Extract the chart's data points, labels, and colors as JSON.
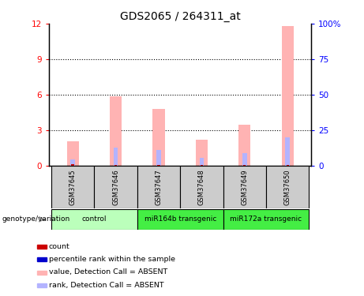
{
  "title": "GDS2065 / 264311_at",
  "samples": [
    "GSM37645",
    "GSM37646",
    "GSM37647",
    "GSM37648",
    "GSM37649",
    "GSM37650"
  ],
  "value_bars": [
    2.1,
    5.85,
    4.8,
    2.2,
    3.5,
    11.8
  ],
  "rank_bars": [
    0.55,
    1.55,
    1.35,
    0.65,
    1.1,
    2.4
  ],
  "count_marks": [
    0.12,
    0.1,
    0.1,
    0.09,
    0.1,
    0.1
  ],
  "ylim_left": [
    0,
    12
  ],
  "ylim_right": [
    0,
    100
  ],
  "yticks_left": [
    0,
    3,
    6,
    9,
    12
  ],
  "yticks_right": [
    0,
    25,
    50,
    75,
    100
  ],
  "ytick_labels_right": [
    "0",
    "25",
    "50",
    "75",
    "100%"
  ],
  "bar_width": 0.28,
  "color_value_absent": "#ffb3b3",
  "color_rank_absent": "#b3b3ff",
  "color_count": "#cc0000",
  "color_rank_mark": "#0000cc",
  "bg_label_row": "#cccccc",
  "group_defs": [
    {
      "label": "control",
      "start": 0,
      "end": 1,
      "color": "#bbffbb"
    },
    {
      "label": "miR164b transgenic",
      "start": 2,
      "end": 3,
      "color": "#44ee44"
    },
    {
      "label": "miR172a transgenic",
      "start": 4,
      "end": 5,
      "color": "#44ee44"
    }
  ],
  "legend_items": [
    {
      "color": "#cc0000",
      "label": "count"
    },
    {
      "color": "#0000cc",
      "label": "percentile rank within the sample"
    },
    {
      "color": "#ffb3b3",
      "label": "value, Detection Call = ABSENT"
    },
    {
      "color": "#b3b3ff",
      "label": "rank, Detection Call = ABSENT"
    }
  ]
}
